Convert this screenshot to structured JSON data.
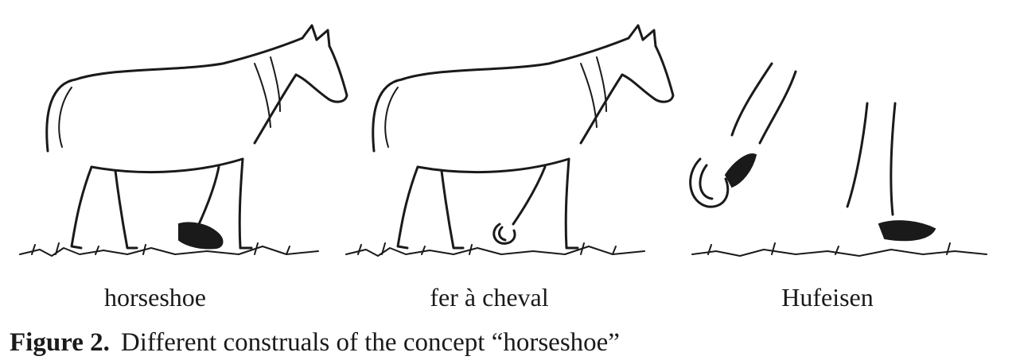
{
  "panels": [
    {
      "label": "horseshoe"
    },
    {
      "label": "fer à cheval"
    },
    {
      "label": "Hufeisen"
    }
  ],
  "caption": {
    "number": "Figure 2.",
    "text": "Different construals of the concept “horseshoe”"
  }
}
